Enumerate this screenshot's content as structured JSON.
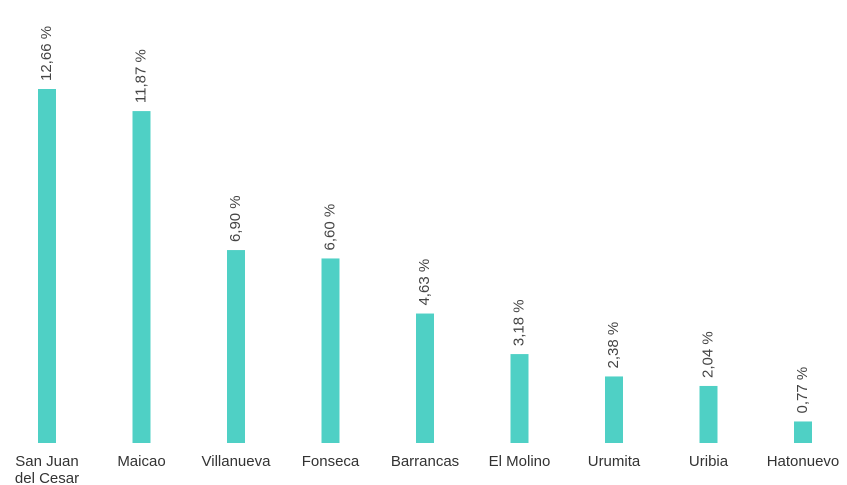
{
  "chart_data": {
    "type": "bar",
    "categories": [
      "San Juan del Cesar",
      "Maicao",
      "Villanueva",
      "Fonseca",
      "Barrancas",
      "El Molino",
      "Urumita",
      "Uribia",
      "Hatonuevo"
    ],
    "values": [
      12.66,
      11.87,
      6.9,
      6.6,
      4.63,
      3.18,
      2.38,
      2.04,
      0.77
    ],
    "value_labels": [
      "12,66 %",
      "11,87 %",
      "6,90 %",
      "6,60 %",
      "4,63 %",
      "3,18 %",
      "2,38 %",
      "2,04 %",
      "0,77 %"
    ],
    "color": "#4fd0c5"
  }
}
